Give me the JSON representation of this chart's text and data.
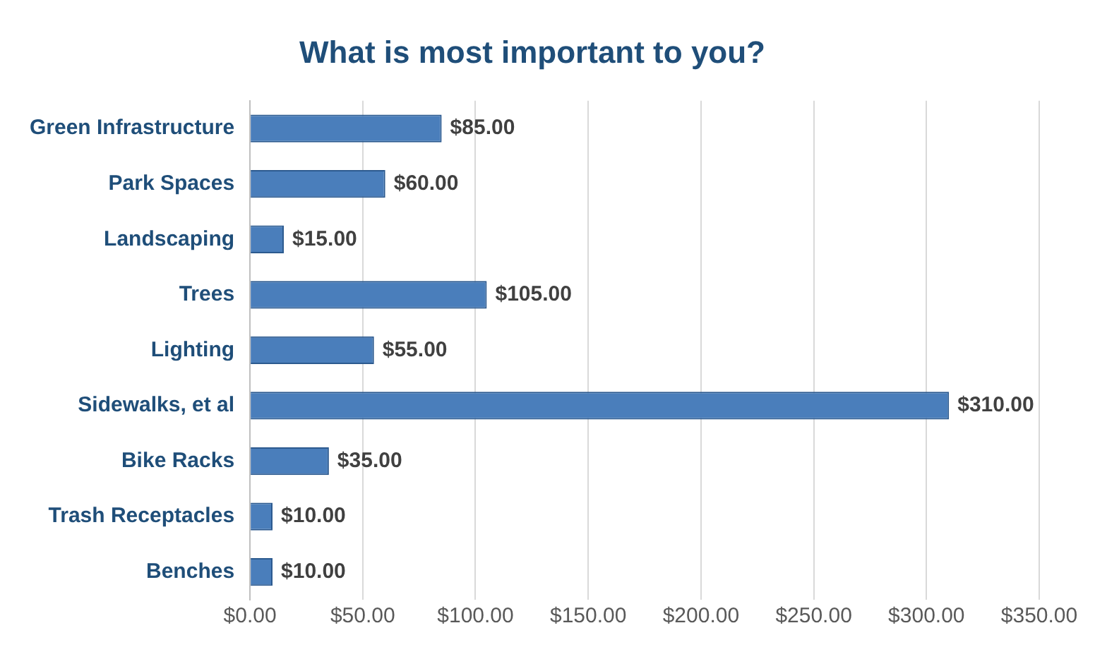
{
  "chart_data": {
    "type": "bar",
    "orientation": "horizontal",
    "title": "What is most important to you?",
    "categories": [
      "Green Infrastructure",
      "Park Spaces",
      "Landscaping",
      "Trees",
      "Lighting",
      "Sidewalks, et al",
      "Bike Racks",
      "Trash Receptacles",
      "Benches"
    ],
    "values": [
      85,
      60,
      15,
      105,
      55,
      310,
      35,
      10,
      10
    ],
    "value_labels": [
      "$85.00",
      "$60.00",
      "$15.00",
      "$105.00",
      "$55.00",
      "$310.00",
      "$35.00",
      "$10.00",
      "$10.00"
    ],
    "color": "#4a7ebb",
    "xlim": [
      0,
      350
    ],
    "xticks": [
      {
        "value": 0,
        "label": "$0.00"
      },
      {
        "value": 50,
        "label": "$50.00"
      },
      {
        "value": 100,
        "label": "$100.00"
      },
      {
        "value": 150,
        "label": "$150.00"
      },
      {
        "value": 200,
        "label": "$200.00"
      },
      {
        "value": 250,
        "label": "$250.00"
      },
      {
        "value": 300,
        "label": "$300.00"
      },
      {
        "value": 350,
        "label": "$350.00"
      }
    ],
    "grid": "x",
    "legend": false
  }
}
